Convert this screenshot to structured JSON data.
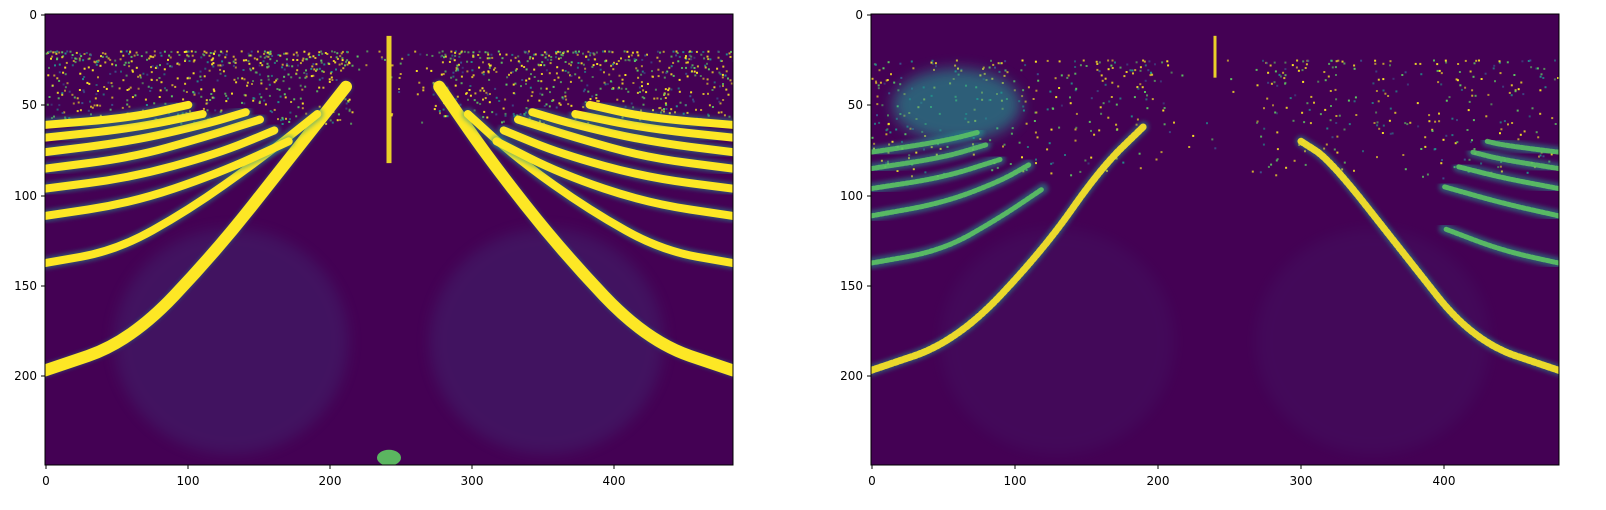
{
  "figure": {
    "colormap": "viridis",
    "background": "#ffffff",
    "colors": {
      "low": "#440154",
      "mid_low": "#3b528b",
      "mid": "#21918c",
      "mid_high": "#5ec962",
      "high": "#fde725"
    }
  },
  "chart_data": [
    {
      "type": "heatmap",
      "panel": "left",
      "title": "",
      "xlabel": "",
      "ylabel": "",
      "xlim": [
        0,
        480
      ],
      "ylim": [
        248,
        0
      ],
      "y_inverted": true,
      "grid": false,
      "legend": "none",
      "x_ticks": [
        {
          "value": 0,
          "label": "0"
        },
        {
          "value": 100,
          "label": "100"
        },
        {
          "value": 200,
          "label": "200"
        },
        {
          "value": 300,
          "label": "300"
        },
        {
          "value": 400,
          "label": "400"
        }
      ],
      "y_ticks": [
        {
          "value": 0,
          "label": "0"
        },
        {
          "value": 50,
          "label": "50"
        },
        {
          "value": 100,
          "label": "100"
        },
        {
          "value": 150,
          "label": "150"
        },
        {
          "value": 200,
          "label": "200"
        }
      ],
      "noise_band_rows": [
        20,
        60
      ],
      "curves": [
        {
          "side": "left",
          "points": [
            [
              0,
              196
            ],
            [
              60,
              180
            ],
            [
              120,
              130
            ],
            [
              170,
              80
            ],
            [
              210,
              40
            ]
          ],
          "intensity": 1.0
        },
        {
          "side": "left",
          "points": [
            [
              0,
              137
            ],
            [
              50,
              130
            ],
            [
              100,
              108
            ],
            [
              150,
              80
            ],
            [
              190,
              55
            ]
          ],
          "intensity": 1.0
        },
        {
          "side": "left",
          "points": [
            [
              0,
              111
            ],
            [
              60,
              104
            ],
            [
              120,
              88
            ],
            [
              170,
              70
            ]
          ],
          "intensity": 1.0
        },
        {
          "side": "left",
          "points": [
            [
              0,
              96
            ],
            [
              60,
              90
            ],
            [
              120,
              77
            ],
            [
              160,
              64
            ]
          ],
          "intensity": 1.0
        },
        {
          "side": "left",
          "points": [
            [
              0,
              85
            ],
            [
              60,
              79
            ],
            [
              110,
              68
            ],
            [
              150,
              58
            ]
          ],
          "intensity": 1.0
        },
        {
          "side": "left",
          "points": [
            [
              0,
              76
            ],
            [
              60,
              70
            ],
            [
              110,
              61
            ],
            [
              140,
              54
            ]
          ],
          "intensity": 1.0
        },
        {
          "side": "left",
          "points": [
            [
              0,
              68
            ],
            [
              60,
              63
            ],
            [
              110,
              55
            ]
          ],
          "intensity": 1.0
        },
        {
          "side": "left",
          "points": [
            [
              0,
              61
            ],
            [
              60,
              57
            ],
            [
              100,
              50
            ]
          ],
          "intensity": 1.0
        },
        {
          "side": "right",
          "points": [
            [
              480,
              196
            ],
            [
              420,
              180
            ],
            [
              360,
              130
            ],
            [
              310,
              80
            ],
            [
              275,
              40
            ]
          ],
          "intensity": 1.0
        },
        {
          "side": "right",
          "points": [
            [
              480,
              137
            ],
            [
              430,
              130
            ],
            [
              380,
              108
            ],
            [
              330,
              80
            ],
            [
              295,
              55
            ]
          ],
          "intensity": 1.0
        },
        {
          "side": "right",
          "points": [
            [
              480,
              111
            ],
            [
              420,
              104
            ],
            [
              360,
              88
            ],
            [
              315,
              70
            ]
          ],
          "intensity": 1.0
        },
        {
          "side": "right",
          "points": [
            [
              480,
              96
            ],
            [
              420,
              90
            ],
            [
              360,
              77
            ],
            [
              320,
              64
            ]
          ],
          "intensity": 1.0
        },
        {
          "side": "right",
          "points": [
            [
              480,
              85
            ],
            [
              420,
              79
            ],
            [
              370,
              68
            ],
            [
              330,
              58
            ]
          ],
          "intensity": 1.0
        },
        {
          "side": "right",
          "points": [
            [
              480,
              76
            ],
            [
              420,
              70
            ],
            [
              370,
              61
            ],
            [
              340,
              54
            ]
          ],
          "intensity": 1.0
        },
        {
          "side": "right",
          "points": [
            [
              480,
              68
            ],
            [
              420,
              63
            ],
            [
              370,
              55
            ]
          ],
          "intensity": 1.0
        },
        {
          "side": "right",
          "points": [
            [
              480,
              61
            ],
            [
              420,
              57
            ],
            [
              380,
              50
            ]
          ],
          "intensity": 1.0
        }
      ],
      "features": {
        "pole": {
          "x": 240,
          "y_range": [
            12,
            82
          ]
        },
        "bottom_spot": {
          "x": 240,
          "y": 244
        }
      }
    },
    {
      "type": "heatmap",
      "panel": "right",
      "title": "",
      "xlabel": "",
      "ylabel": "",
      "xlim": [
        0,
        480
      ],
      "ylim": [
        248,
        0
      ],
      "y_inverted": true,
      "grid": false,
      "legend": "none",
      "x_ticks": [
        {
          "value": 0,
          "label": "0"
        },
        {
          "value": 100,
          "label": "100"
        },
        {
          "value": 200,
          "label": "200"
        },
        {
          "value": 300,
          "label": "300"
        },
        {
          "value": 400,
          "label": "400"
        }
      ],
      "y_ticks": [
        {
          "value": 0,
          "label": "0"
        },
        {
          "value": 50,
          "label": "50"
        },
        {
          "value": 100,
          "label": "100"
        },
        {
          "value": 150,
          "label": "150"
        },
        {
          "value": 200,
          "label": "200"
        }
      ],
      "noise_band_rows": [
        25,
        90
      ],
      "blob": {
        "x": 60,
        "y": 50,
        "rx": 45,
        "ry": 20
      },
      "curves": [
        {
          "side": "left",
          "points": [
            [
              0,
              196
            ],
            [
              60,
              180
            ],
            [
              120,
              130
            ],
            [
              160,
              85
            ],
            [
              190,
              62
            ]
          ],
          "intensity": 0.8
        },
        {
          "side": "left",
          "points": [
            [
              0,
              137
            ],
            [
              50,
              130
            ],
            [
              90,
              112
            ],
            [
              120,
              96
            ]
          ],
          "intensity": 0.7
        },
        {
          "side": "left",
          "points": [
            [
              0,
              111
            ],
            [
              50,
              104
            ],
            [
              90,
              92
            ],
            [
              110,
              83
            ]
          ],
          "intensity": 0.7
        },
        {
          "side": "left",
          "points": [
            [
              0,
              96
            ],
            [
              50,
              90
            ],
            [
              90,
              80
            ]
          ],
          "intensity": 0.7
        },
        {
          "side": "left",
          "points": [
            [
              0,
              85
            ],
            [
              50,
              79
            ],
            [
              80,
              72
            ]
          ],
          "intensity": 0.6
        },
        {
          "side": "left",
          "points": [
            [
              0,
              76
            ],
            [
              50,
              70
            ],
            [
              75,
              65
            ]
          ],
          "intensity": 0.6
        },
        {
          "side": "right",
          "points": [
            [
              480,
              196
            ],
            [
              420,
              180
            ],
            [
              370,
              130
            ],
            [
              320,
              80
            ],
            [
              300,
              70
            ]
          ],
          "intensity": 0.8
        },
        {
          "side": "right",
          "points": [
            [
              480,
              137
            ],
            [
              440,
              130
            ],
            [
              400,
              118
            ]
          ],
          "intensity": 0.7
        },
        {
          "side": "right",
          "points": [
            [
              480,
              111
            ],
            [
              440,
              104
            ],
            [
              400,
              95
            ]
          ],
          "intensity": 0.7
        },
        {
          "side": "right",
          "points": [
            [
              480,
              96
            ],
            [
              440,
              90
            ],
            [
              410,
              84
            ]
          ],
          "intensity": 0.7
        },
        {
          "side": "right",
          "points": [
            [
              480,
              85
            ],
            [
              440,
              80
            ],
            [
              420,
              76
            ]
          ],
          "intensity": 0.6
        },
        {
          "side": "right",
          "points": [
            [
              480,
              76
            ],
            [
              440,
              72
            ],
            [
              430,
              70
            ]
          ],
          "intensity": 0.6
        }
      ],
      "features": {
        "pole": {
          "x": 240,
          "y_range": [
            12,
            35
          ]
        }
      }
    }
  ]
}
